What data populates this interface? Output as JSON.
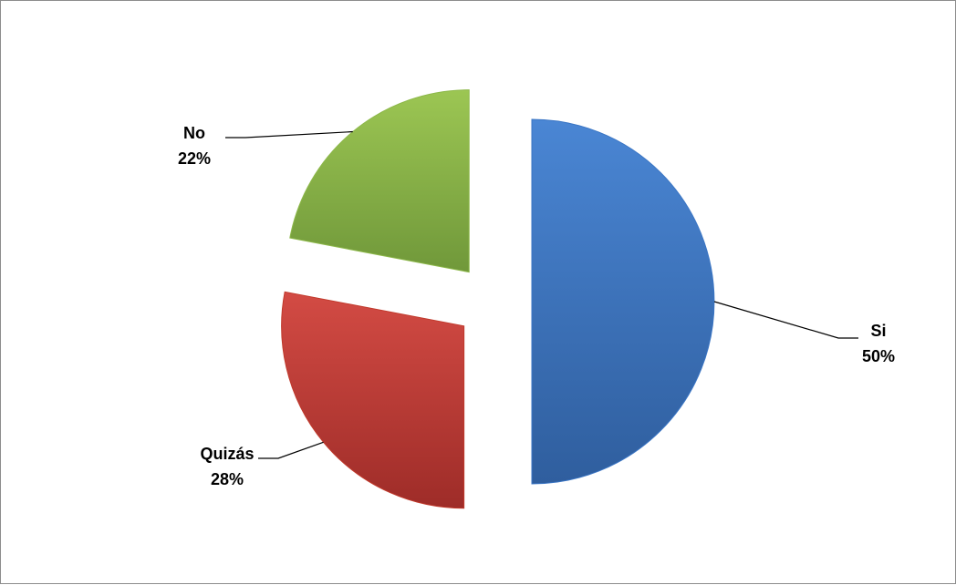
{
  "chart_data": {
    "type": "pie",
    "exploded": true,
    "categories": [
      "Si",
      "Quizás",
      "No"
    ],
    "values": [
      50,
      28,
      22
    ],
    "percent_labels": [
      "50%",
      "28%",
      "22%"
    ],
    "colors": [
      "#3a75c4",
      "#c0392b",
      "#8db84a"
    ],
    "gradient_light": [
      "#4a86d4",
      "#d34b44",
      "#9cc653"
    ],
    "gradient_dark": [
      "#2f5e9e",
      "#9e2c28",
      "#70983a"
    ],
    "legend": "none",
    "start_angle_deg": 0,
    "direction": "clockwise"
  }
}
